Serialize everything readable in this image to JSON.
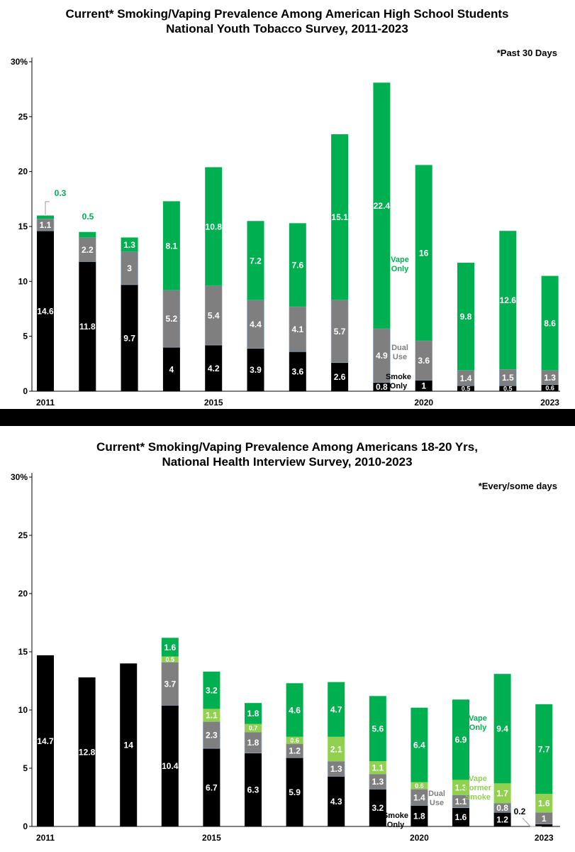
{
  "colors": {
    "smoke": "#000000",
    "dual": "#7f7f7f",
    "former_vape": "#92d050",
    "vape": "#00b050",
    "vape_text": "#00b050",
    "dual_text": "#7f7f7f"
  },
  "chart_data": [
    {
      "type": "bar",
      "stacked": true,
      "title_lines": [
        "Current* Smoking/Vaping Prevalence Among American High School Students",
        "National Youth Tobacco Survey, 2011-2023"
      ],
      "note": "*Past 30 Days",
      "ylim": [
        0,
        30
      ],
      "y_ticks": [
        0,
        5,
        10,
        15,
        20,
        25,
        30
      ],
      "y_tick_labels": [
        "0",
        "5",
        "10",
        "15",
        "20",
        "25",
        "30%"
      ],
      "grid": false,
      "x": [
        2011,
        2012,
        2013,
        2014,
        2015,
        2016,
        2017,
        2018,
        2019,
        2020,
        2021,
        2022,
        2023
      ],
      "x_tick_labels": [
        "2011",
        "",
        "",
        "",
        "2015",
        "",
        "",
        "",
        "",
        "2020",
        "",
        "",
        "2023"
      ],
      "series": [
        {
          "key": "smoke",
          "values": [
            14.6,
            11.8,
            9.7,
            4,
            4.2,
            3.9,
            3.6,
            2.6,
            0.8,
            1,
            0.5,
            0.5,
            0.6
          ],
          "labels": [
            "14.6",
            "11.8",
            "9.7",
            "4",
            "4.2",
            "3.9",
            "3.6",
            "2.6",
            "0.8",
            "1",
            "0.5",
            "0.5",
            "0.6"
          ]
        },
        {
          "key": "dual",
          "values": [
            1.1,
            2.2,
            3,
            5.2,
            5.4,
            4.4,
            4.1,
            5.7,
            4.9,
            3.6,
            1.4,
            1.5,
            1.3
          ],
          "labels": [
            "1.1",
            "2.2",
            "3",
            "5.2",
            "5.4",
            "4.4",
            "4.1",
            "5.7",
            "4.9",
            "3.6",
            "1.4",
            "1.5",
            "1.3"
          ]
        },
        {
          "key": "vape",
          "values": [
            0.3,
            0.5,
            1.3,
            8.1,
            10.8,
            7.2,
            7.6,
            15.1,
            22.4,
            16,
            9.8,
            12.6,
            8.6
          ],
          "labels": [
            "0.3",
            "0.5",
            "1.3",
            "8.1",
            "10.8",
            "7.2",
            "7.6",
            "15.1",
            "22.4",
            "16",
            "9.8",
            "12.6",
            "8.6"
          ]
        }
      ],
      "annotations": {
        "vape_only": [
          "Vape",
          "Only"
        ],
        "dual_use": [
          "Dual",
          "Use"
        ],
        "smoke_only": [
          "Smoke",
          "Only"
        ]
      }
    },
    {
      "type": "bar",
      "stacked": true,
      "title_lines": [
        "Current* Smoking/Vaping Prevalence Among Americans 18-20 Yrs,",
        "National Health Interview Survey, 2010-2023"
      ],
      "note": "*Every/some days",
      "ylim": [
        0,
        30
      ],
      "y_ticks": [
        0,
        5,
        10,
        15,
        20,
        25,
        30
      ],
      "y_tick_labels": [
        "0",
        "5",
        "10",
        "15",
        "20",
        "25",
        "30%"
      ],
      "grid": false,
      "x": [
        2011,
        2012,
        2013,
        2014,
        2015,
        2016,
        2017,
        2018,
        2019,
        2020,
        2021,
        2022,
        2023
      ],
      "x_tick_labels": [
        "2011",
        "",
        "",
        "",
        "2015",
        "",
        "",
        "",
        "",
        "2020",
        "",
        "",
        "2023"
      ],
      "series": [
        {
          "key": "smoke",
          "values": [
            14.7,
            12.8,
            14,
            10.4,
            6.7,
            6.3,
            5.9,
            4.3,
            3.2,
            1.8,
            1.6,
            1.2,
            0.2
          ],
          "labels": [
            "14.7",
            "12.8",
            "14",
            "10.4",
            "6.7",
            "6.3",
            "5.9",
            "4.3",
            "3.2",
            "1.8",
            "1.6",
            "1.2",
            "0.2"
          ]
        },
        {
          "key": "dual",
          "values": [
            0,
            0,
            0,
            3.7,
            2.3,
            1.8,
            1.2,
            1.3,
            1.3,
            1.4,
            1.1,
            0.8,
            1
          ],
          "labels": [
            "",
            "",
            "",
            "3.7",
            "2.3",
            "1.8",
            "1.2",
            "1.3",
            "1.3",
            "1.4",
            "1.1",
            "0.8",
            "1"
          ]
        },
        {
          "key": "former_vape",
          "values": [
            0,
            0,
            0,
            0.5,
            1.1,
            0.7,
            0.6,
            2.1,
            1.1,
            0.6,
            1.3,
            1.7,
            1.6
          ],
          "labels": [
            "",
            "",
            "",
            "0.5",
            "1.1",
            "0.7",
            "0.6",
            "2.1",
            "1.1",
            "0.6",
            "1.3",
            "1.7",
            "1.6"
          ]
        },
        {
          "key": "vape",
          "values": [
            0,
            0,
            0,
            1.6,
            3.2,
            1.8,
            4.6,
            4.7,
            5.6,
            6.4,
            6.9,
            9.4,
            7.7
          ],
          "labels": [
            "",
            "",
            "",
            "1.6",
            "3.2",
            "1.8",
            "4.6",
            "4.7",
            "5.6",
            "6.4",
            "6.9",
            "9.4",
            "7.7"
          ]
        }
      ],
      "annotations": {
        "vape_only": [
          "Vape",
          "Only"
        ],
        "former_smoke": [
          "Vape",
          "Former",
          "Smoke"
        ],
        "dual_use": [
          "Dual",
          "Use"
        ],
        "smoke_only": [
          "Smoke",
          "Only"
        ]
      }
    }
  ]
}
